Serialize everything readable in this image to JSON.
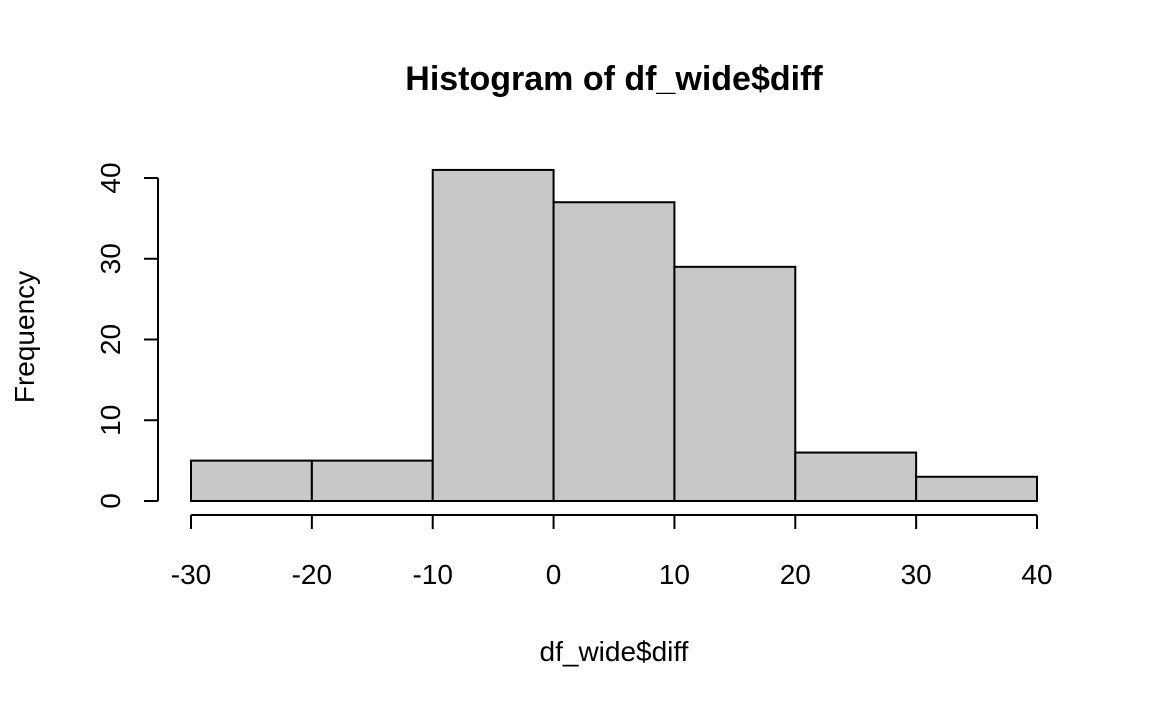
{
  "chart_data": {
    "type": "bar",
    "title": "Histogram of df_wide$diff",
    "xlabel": "df_wide$diff",
    "ylabel": "Frequency",
    "bins": [
      {
        "start": -30,
        "end": -20,
        "count": 5
      },
      {
        "start": -20,
        "end": -10,
        "count": 5
      },
      {
        "start": -10,
        "end": 0,
        "count": 41
      },
      {
        "start": 0,
        "end": 10,
        "count": 37
      },
      {
        "start": 10,
        "end": 20,
        "count": 29
      },
      {
        "start": 20,
        "end": 30,
        "count": 6
      },
      {
        "start": 30,
        "end": 40,
        "count": 3
      }
    ],
    "xlim": [
      -30,
      40
    ],
    "ylim": [
      0,
      41
    ],
    "x_ticks": [
      -30,
      -20,
      -10,
      0,
      10,
      20,
      30,
      40
    ],
    "x_tick_labels": [
      "-30",
      "-20",
      "-10",
      "0",
      "10",
      "20",
      "30",
      "40"
    ],
    "y_ticks": [
      0,
      10,
      20,
      30,
      40
    ],
    "y_tick_labels": [
      "0",
      "10",
      "20",
      "30",
      "40"
    ],
    "grid": false,
    "bar_color": "#c8c8c8",
    "edge_color": "#000000"
  }
}
